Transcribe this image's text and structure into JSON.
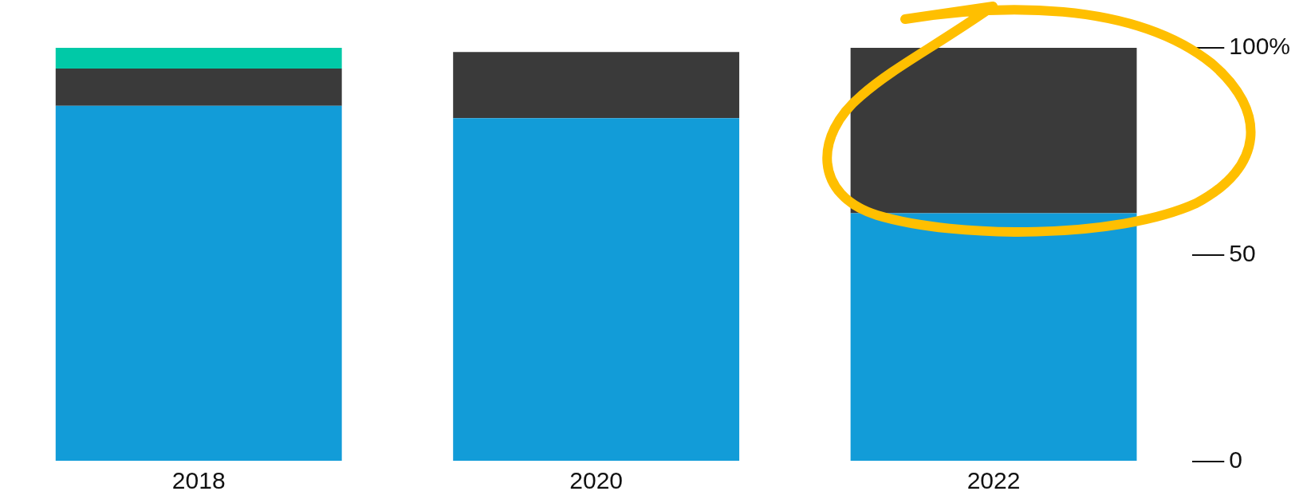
{
  "chart_data": {
    "type": "bar",
    "stacked": true,
    "categories": [
      "2018",
      "2020",
      "2022"
    ],
    "series": [
      {
        "color": "#129cd8",
        "values": [
          86,
          83,
          60
        ]
      },
      {
        "color": "#3a3a3a",
        "values": [
          9,
          16,
          40
        ]
      },
      {
        "color": "#00c9a7",
        "values": [
          5,
          null,
          null
        ]
      }
    ],
    "ylim": [
      0,
      100
    ],
    "yticks": [
      0,
      50,
      {
        "value": 100,
        "label": "100%"
      }
    ],
    "grid": false,
    "legend": false
  }
}
